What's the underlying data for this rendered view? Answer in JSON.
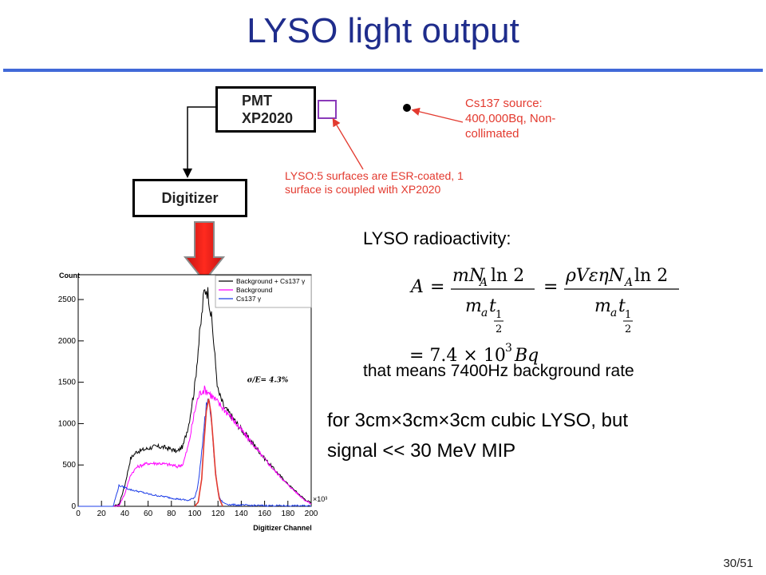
{
  "slide": {
    "title": "LYSO light output",
    "page_number": "30/51",
    "accent_color": "#4169d8",
    "title_color": "#1f2d8c"
  },
  "diagram": {
    "pmt_lines": [
      "PMT",
      "XP2020"
    ],
    "digitizer_label": "Digitizer",
    "lyso_note": "LYSO:5 surfaces are ESR-coated, 1 surface is coupled with XP2020",
    "source_note": "Cs137 source: 400,000Bq, Non-collimated",
    "note_color": "#e33a2f"
  },
  "radioactivity": {
    "heading": "LYSO radioactivity:",
    "conclusion": "that means 7400Hz background rate"
  },
  "caption": {
    "line1": "for 3cm×3cm×3cm cubic LYSO, but",
    "line2": "signal << 30 MeV MIP"
  },
  "chart_data": {
    "type": "line",
    "title": "",
    "xlabel": "Digitizer Channel",
    "ylabel": "Count",
    "x_multiplier_label": "×10³",
    "xlim": [
      0,
      200
    ],
    "ylim": [
      0,
      2800
    ],
    "x_ticks": [
      0,
      20,
      40,
      60,
      80,
      100,
      120,
      140,
      160,
      180,
      200
    ],
    "y_ticks": [
      0,
      500,
      1000,
      1500,
      2000,
      2500
    ],
    "annotation": "σ/E= 4.3%",
    "legend_position": "top-right",
    "series": [
      {
        "name": "Background + Cs137 γ",
        "color": "#000000",
        "x": [
          0,
          30,
          35,
          40,
          45,
          50,
          55,
          60,
          65,
          70,
          75,
          80,
          85,
          90,
          95,
          100,
          103,
          106,
          108,
          110,
          112,
          115,
          118,
          120,
          125,
          130,
          140,
          150,
          160,
          170,
          180,
          190,
          195,
          200
        ],
        "y": [
          0,
          0,
          20,
          250,
          580,
          660,
          680,
          700,
          720,
          720,
          710,
          690,
          660,
          730,
          1000,
          1450,
          1900,
          2300,
          2580,
          2640,
          2550,
          2200,
          1700,
          1400,
          1200,
          1120,
          930,
          760,
          580,
          420,
          270,
          140,
          80,
          40
        ]
      },
      {
        "name": "Background",
        "color": "#ff00ff",
        "x": [
          0,
          30,
          35,
          40,
          45,
          50,
          55,
          60,
          65,
          70,
          75,
          80,
          85,
          90,
          95,
          100,
          103,
          106,
          109,
          112,
          115,
          120,
          125,
          130,
          140,
          150,
          160,
          170,
          180,
          190,
          195,
          200
        ],
        "y": [
          0,
          0,
          10,
          150,
          380,
          470,
          500,
          520,
          520,
          520,
          510,
          500,
          480,
          510,
          760,
          1150,
          1320,
          1400,
          1410,
          1380,
          1330,
          1250,
          1180,
          1100,
          920,
          750,
          570,
          410,
          260,
          130,
          70,
          30
        ]
      },
      {
        "name": "Cs137 γ",
        "color": "#1f3fe8",
        "x": [
          0,
          30,
          35,
          40,
          45,
          50,
          55,
          60,
          65,
          70,
          75,
          80,
          85,
          90,
          95,
          100,
          102,
          104,
          106,
          108,
          110,
          112,
          114,
          116,
          118,
          120,
          122,
          125,
          130,
          140,
          150,
          200
        ],
        "y": [
          0,
          0,
          250,
          230,
          200,
          185,
          170,
          150,
          135,
          125,
          115,
          100,
          90,
          80,
          70,
          110,
          200,
          380,
          660,
          950,
          1230,
          1300,
          1080,
          720,
          400,
          180,
          80,
          40,
          20,
          15,
          10,
          5
        ]
      },
      {
        "name": "",
        "color": "#e33a2f",
        "x": [
          100,
          103,
          106,
          108,
          110,
          112,
          114,
          116,
          118,
          121,
          124
        ],
        "y": [
          0,
          50,
          330,
          780,
          1150,
          1300,
          1120,
          760,
          380,
          100,
          0
        ]
      }
    ]
  }
}
